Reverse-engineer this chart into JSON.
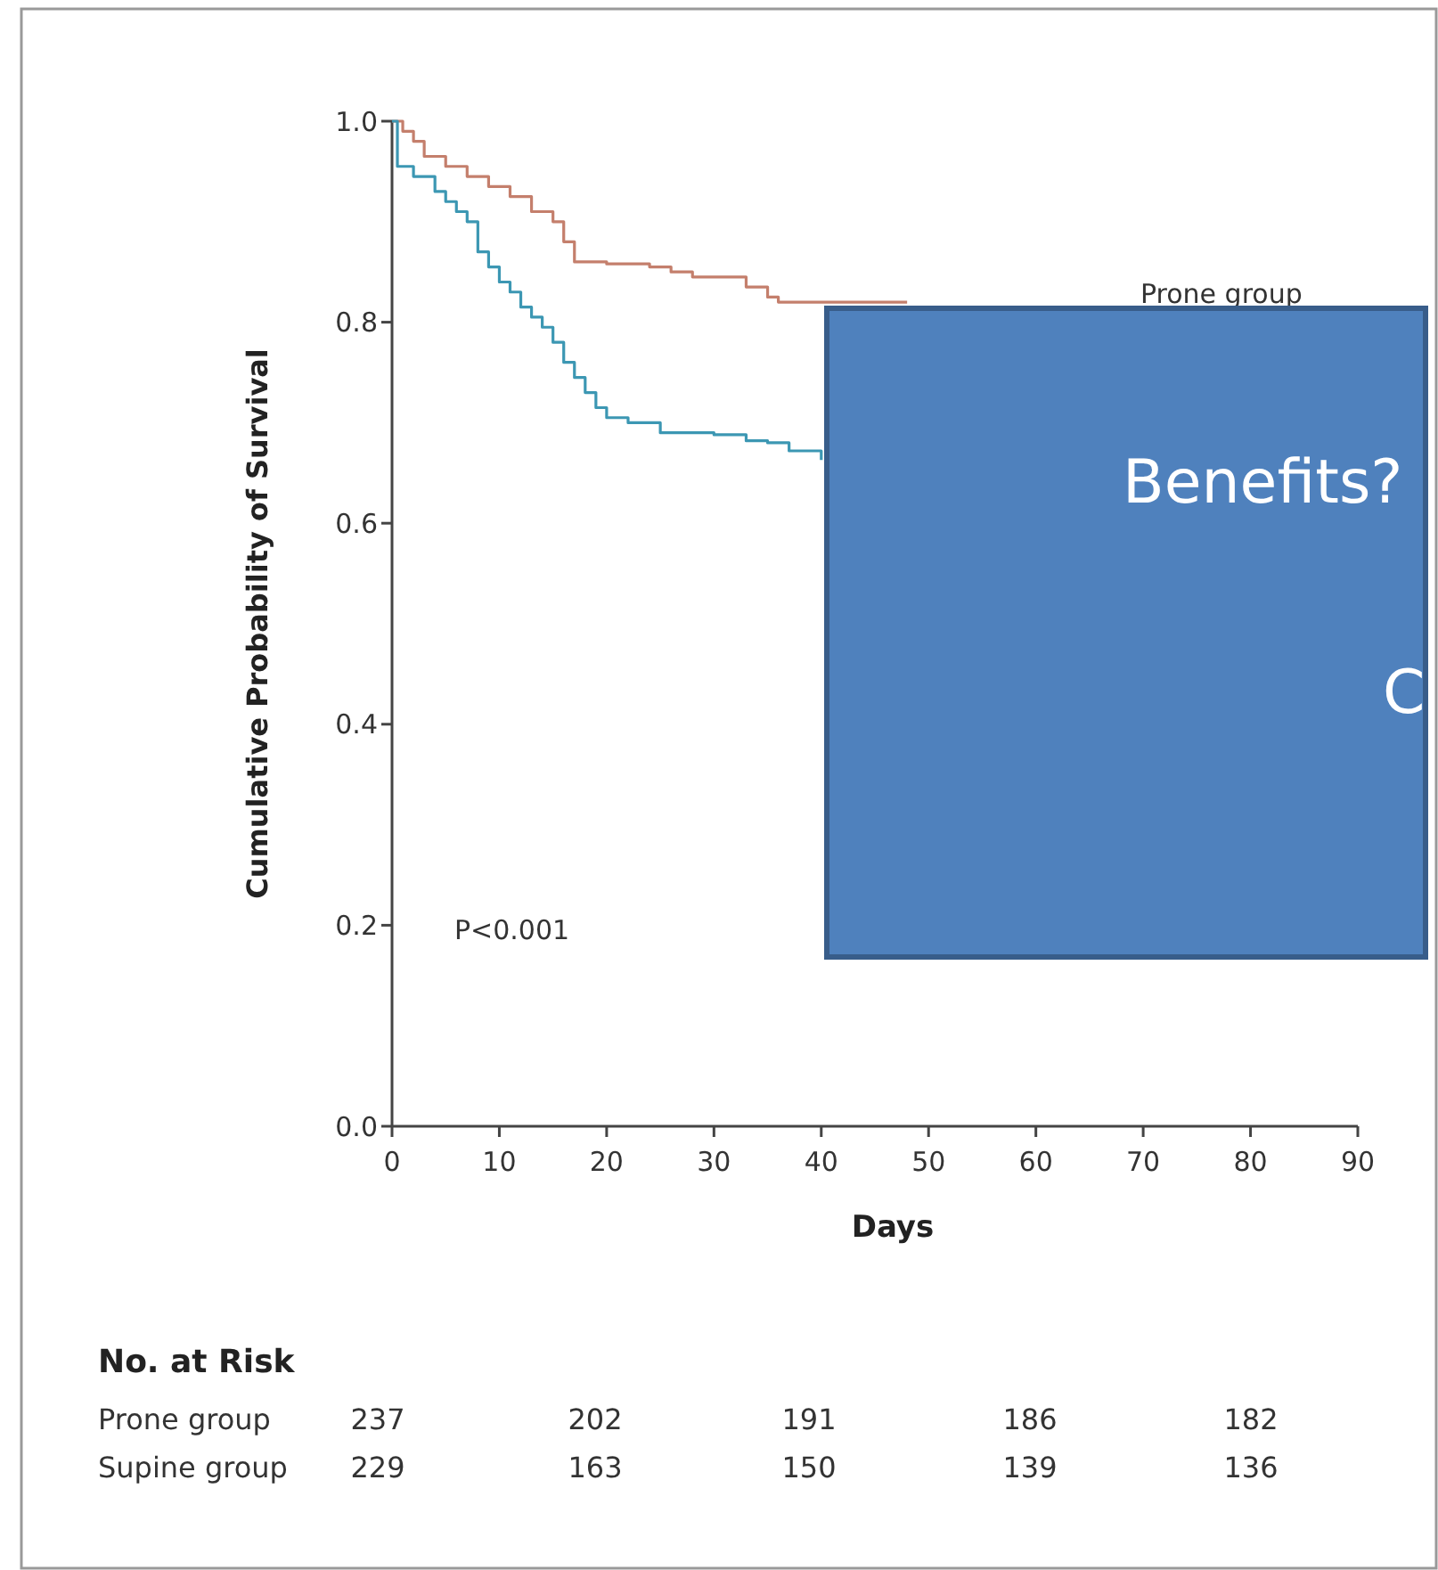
{
  "chart_data": {
    "type": "step",
    "xlabel": "Days",
    "ylabel": "Cumulative Probability of Survival",
    "xlim": [
      0,
      90
    ],
    "xticks": [
      0,
      10,
      20,
      30,
      40,
      50,
      60,
      70,
      80,
      90
    ],
    "ylim": [
      0,
      1
    ],
    "yticks": [
      {
        "value": 0,
        "label": "0.0"
      },
      {
        "value": 0.2,
        "label": "0.2"
      },
      {
        "value": 0.4,
        "label": "0.4"
      },
      {
        "value": 0.6,
        "label": "0.6"
      },
      {
        "value": 0.8,
        "label": "0.8"
      },
      {
        "value": 1,
        "label": "1.0"
      }
    ],
    "series": [
      {
        "name": "Prone group",
        "color": "#c47f6c",
        "x": [
          0,
          1,
          2,
          3,
          5,
          7,
          9,
          11,
          13,
          15,
          16,
          17,
          20,
          24,
          26,
          28,
          31,
          33,
          35,
          36,
          48
        ],
        "values": [
          1,
          0.99,
          0.98,
          0.965,
          0.955,
          0.945,
          0.935,
          0.925,
          0.91,
          0.9,
          0.88,
          0.86,
          0.858,
          0.855,
          0.85,
          0.845,
          0.845,
          0.835,
          0.825,
          0.82,
          0.82
        ]
      },
      {
        "color": "#3c97b3",
        "x": [
          0,
          0.5,
          2,
          4,
          5,
          6,
          7,
          8,
          9,
          10,
          11,
          12,
          13,
          14,
          15,
          16,
          17,
          18,
          19,
          20,
          22,
          25,
          30,
          33,
          35,
          37,
          40
        ],
        "values": [
          1,
          0.955,
          0.945,
          0.93,
          0.92,
          0.91,
          0.9,
          0.87,
          0.855,
          0.84,
          0.83,
          0.815,
          0.805,
          0.795,
          0.78,
          0.76,
          0.745,
          0.73,
          0.715,
          0.705,
          0.7,
          0.69,
          0.688,
          0.682,
          0.68,
          0.672,
          0.663
        ]
      }
    ],
    "annotations": [
      "P<0.001",
      "Benefits?",
      "C",
      "No. at Risk",
      "Prone group",
      "237",
      "202",
      "191",
      "186",
      "182",
      "Supine group",
      "229",
      "163",
      "150",
      "139",
      "136"
    ]
  }
}
